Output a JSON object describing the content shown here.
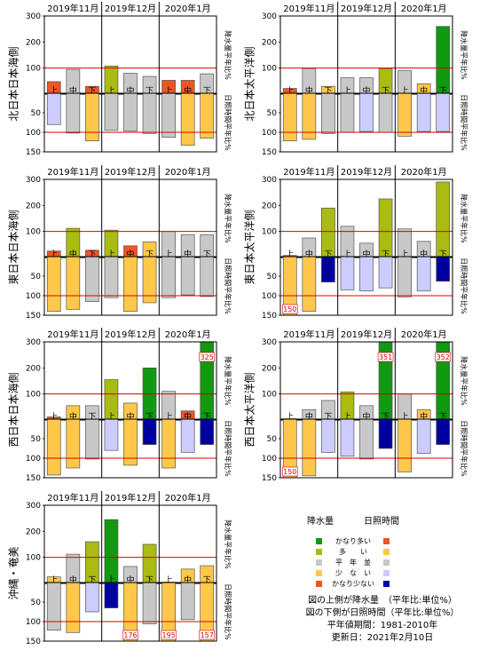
{
  "colors": {
    "much_above": "#119911",
    "above": "#aabb11",
    "normal": "#c8c8c8",
    "below_precip": "#ee5522",
    "below_sun": "#ffc84a",
    "much_below_precip": "#ee5522",
    "much_below_sun": "#ffc84a",
    "above_sun": "#ccccff",
    "much_above_sun": "#0000a0",
    "ref_line": "#dd0000"
  },
  "legend": {
    "precip_header": "降水量",
    "sun_header": "日照時間",
    "items": [
      {
        "label": "かなり多い",
        "precip_color": "#119911",
        "sun_color": "#ee5522"
      },
      {
        "label": "多　　い",
        "precip_color": "#aabb11",
        "sun_color": "#ffc84a"
      },
      {
        "label": "平　年　並",
        "precip_color": "#c8c8c8",
        "sun_color": "#c8c8c8"
      },
      {
        "label": "少　な　い",
        "precip_color": "#ffc84a",
        "sun_color": "#ccccff"
      },
      {
        "label": "かなり少ない",
        "precip_color": "#ee5522",
        "sun_color": "#0000a0"
      }
    ],
    "notes": [
      "図の上側が降水量　（平年比:単位%）",
      "図の下側が日照時間（平年比:単位%）",
      "平年値期間：1981-2010年",
      "更新日：2021年2月10日"
    ]
  },
  "chart_data": [
    {
      "type": "bar",
      "region": "北日本日本海側",
      "months": [
        "2019年11月",
        "2019年12月",
        "2020年1月"
      ],
      "categories": [
        "上",
        "中",
        "下",
        "上",
        "中",
        "下",
        "上",
        "中",
        "下"
      ],
      "precip": {
        "ylabel": "降水量平年比%",
        "ylim": [
          0,
          300
        ],
        "ticks": [
          100,
          200,
          300
        ],
        "values": [
          48,
          95,
          30,
          108,
          80,
          68,
          53,
          53,
          78
        ],
        "classes": [
          "below_precip",
          "normal",
          "below_precip",
          "above",
          "normal",
          "normal",
          "below_precip",
          "below_precip",
          "normal"
        ],
        "labels": [
          "",
          "",
          "",
          "",
          "",
          "",
          "",
          "",
          ""
        ]
      },
      "sun": {
        "ylabel": "日照時間平年比%",
        "ylim": [
          0,
          150
        ],
        "ticks": [
          50,
          100,
          150
        ],
        "values": [
          80,
          102,
          122,
          95,
          97,
          103,
          113,
          133,
          115
        ],
        "classes": [
          "above_sun",
          "normal",
          "below_sun",
          "normal",
          "normal",
          "normal",
          "normal",
          "below_sun",
          "below_sun"
        ],
        "labels": [
          "",
          "",
          "",
          "",
          "",
          "",
          "",
          "",
          ""
        ]
      }
    },
    {
      "type": "bar",
      "region": "北日本太平洋側",
      "months": [
        "2019年11月",
        "2019年12月",
        "2020年1月"
      ],
      "categories": [
        "上",
        "中",
        "下",
        "上",
        "中",
        "下",
        "上",
        "中",
        "下"
      ],
      "precip": {
        "ylabel": "降水量平年比%",
        "ylim": [
          0,
          300
        ],
        "ticks": [
          100,
          200,
          300
        ],
        "values": [
          22,
          98,
          30,
          63,
          63,
          98,
          90,
          40,
          260
        ],
        "classes": [
          "below_precip",
          "normal",
          "below_sun",
          "normal",
          "normal",
          "above",
          "normal",
          "below_sun",
          "much_above"
        ],
        "labels": [
          "",
          "",
          "",
          "",
          "",
          "",
          "",
          "",
          ""
        ]
      },
      "sun": {
        "ylabel": "日照時間平年比%",
        "ylim": [
          0,
          150
        ],
        "ticks": [
          50,
          100,
          150
        ],
        "values": [
          122,
          118,
          103,
          100,
          98,
          100,
          110,
          98,
          98
        ],
        "classes": [
          "below_sun",
          "below_sun",
          "normal",
          "normal",
          "above_sun",
          "normal",
          "below_sun",
          "above_sun",
          "above_sun"
        ],
        "labels": [
          "",
          "",
          "",
          "",
          "",
          "",
          "",
          "",
          ""
        ]
      }
    },
    {
      "type": "bar",
      "region": "東日本日本海側",
      "months": [
        "2019年11月",
        "2019年12月",
        "2020年1月"
      ],
      "categories": [
        "上",
        "中",
        "下",
        "上",
        "中",
        "下",
        "上",
        "中",
        "下"
      ],
      "precip": {
        "ylabel": "降水量平年比%",
        "ylim": [
          0,
          300
        ],
        "ticks": [
          100,
          200,
          300
        ],
        "values": [
          25,
          112,
          28,
          105,
          45,
          60,
          100,
          88,
          88
        ],
        "classes": [
          "below_precip",
          "above",
          "below_precip",
          "above",
          "below_precip",
          "below_sun",
          "normal",
          "normal",
          "normal"
        ],
        "labels": [
          "",
          "",
          "",
          "",
          "",
          "",
          "",
          "",
          ""
        ]
      },
      "sun": {
        "ylabel": "日照時間平年比%",
        "ylim": [
          0,
          150
        ],
        "ticks": [
          50,
          100,
          150
        ],
        "values": [
          140,
          135,
          115,
          105,
          140,
          118,
          105,
          98,
          102
        ],
        "classes": [
          "below_sun",
          "below_sun",
          "normal",
          "normal",
          "below_sun",
          "below_sun",
          "normal",
          "normal",
          "normal"
        ],
        "labels": [
          "",
          "",
          "",
          "",
          "",
          "",
          "",
          "",
          ""
        ]
      }
    },
    {
      "type": "bar",
      "region": "東日本太平洋側",
      "months": [
        "2019年11月",
        "2019年12月",
        "2020年1月"
      ],
      "categories": [
        "上",
        "中",
        "下",
        "上",
        "中",
        "下",
        "上",
        "中",
        "下"
      ],
      "precip": {
        "ylabel": "降水量平年比%",
        "ylim": [
          0,
          300
        ],
        "ticks": [
          100,
          200,
          300
        ],
        "values": [
          8,
          75,
          190,
          120,
          55,
          225,
          110,
          62,
          290
        ],
        "classes": [
          "much_below_precip",
          "normal",
          "above",
          "normal",
          "normal",
          "above",
          "normal",
          "normal",
          "above"
        ],
        "labels": [
          "",
          "",
          "",
          "",
          "",
          "",
          "",
          "",
          ""
        ]
      },
      "sun": {
        "ylabel": "日照時間平年比%",
        "ylim": [
          0,
          150
        ],
        "ticks": [
          50,
          100,
          150
        ],
        "values": [
          150,
          140,
          65,
          85,
          88,
          80,
          103,
          88,
          63
        ],
        "classes": [
          "much_below_sun",
          "much_below_sun",
          "much_above_sun",
          "above_sun",
          "above_sun",
          "above_sun",
          "normal",
          "above_sun",
          "much_above_sun"
        ],
        "labels": [
          "150",
          "",
          "",
          "",
          "",
          "",
          "",
          "",
          ""
        ]
      }
    },
    {
      "type": "bar",
      "region": "西日本日本海側",
      "months": [
        "2019年11月",
        "2019年12月",
        "2020年1月"
      ],
      "categories": [
        "上",
        "中",
        "下",
        "上",
        "中",
        "下",
        "上",
        "中",
        "下"
      ],
      "precip": {
        "ylabel": "降水量平年比%",
        "ylim": [
          0,
          300
        ],
        "ticks": [
          100,
          200,
          300
        ],
        "values": [
          12,
          55,
          55,
          155,
          65,
          200,
          110,
          35,
          325
        ],
        "classes": [
          "below_precip",
          "below_sun",
          "normal",
          "above",
          "below_sun",
          "much_above",
          "normal",
          "below_precip",
          "much_above"
        ],
        "labels": [
          "",
          "",
          "",
          "",
          "",
          "",
          "",
          "",
          "325"
        ]
      },
      "sun": {
        "ylabel": "日照時間平年比%",
        "ylim": [
          0,
          150
        ],
        "ticks": [
          50,
          100,
          150
        ],
        "values": [
          143,
          125,
          102,
          80,
          118,
          65,
          125,
          85,
          65
        ],
        "classes": [
          "much_below_sun",
          "below_sun",
          "normal",
          "above_sun",
          "below_sun",
          "much_above_sun",
          "below_sun",
          "above_sun",
          "much_above_sun"
        ],
        "labels": [
          "",
          "",
          "",
          "",
          "",
          "",
          "",
          "",
          ""
        ]
      }
    },
    {
      "type": "bar",
      "region": "西日本太平洋側",
      "months": [
        "2019年11月",
        "2019年12月",
        "2020年1月"
      ],
      "categories": [
        "上",
        "中",
        "下",
        "上",
        "中",
        "下",
        "上",
        "中",
        "下"
      ],
      "precip": {
        "ylabel": "降水量平年比%",
        "ylim": [
          0,
          300
        ],
        "ticks": [
          100,
          200,
          300
        ],
        "values": [
          5,
          40,
          75,
          108,
          55,
          351,
          100,
          40,
          352
        ],
        "classes": [
          "much_below_precip",
          "normal",
          "normal",
          "above",
          "normal",
          "much_above",
          "normal",
          "below_sun",
          "much_above"
        ],
        "labels": [
          "",
          "",
          "",
          "",
          "",
          "351",
          "",
          "",
          "352"
        ]
      },
      "sun": {
        "ylabel": "日照時間平年比%",
        "ylim": [
          0,
          150
        ],
        "ticks": [
          50,
          100,
          150
        ],
        "values": [
          150,
          145,
          85,
          95,
          102,
          75,
          135,
          88,
          65
        ],
        "classes": [
          "much_below_sun",
          "much_below_sun",
          "above_sun",
          "above_sun",
          "normal",
          "much_above_sun",
          "much_below_sun",
          "above_sun",
          "much_above_sun"
        ],
        "labels": [
          "150",
          "",
          "",
          "",
          "",
          "",
          "",
          "",
          ""
        ]
      }
    },
    {
      "type": "bar",
      "region": "沖縄・奄美",
      "months": [
        "2019年11月",
        "2019年12月",
        "2020年1月"
      ],
      "categories": [
        "上",
        "中",
        "下",
        "上",
        "中",
        "下",
        "上",
        "中",
        "下"
      ],
      "precip": {
        "ylabel": "降水量平年比%",
        "ylim": [
          0,
          300
        ],
        "ticks": [
          100,
          200,
          300
        ],
        "values": [
          25,
          112,
          160,
          245,
          65,
          150,
          5,
          55,
          68
        ],
        "classes": [
          "below_sun",
          "normal",
          "above",
          "much_above",
          "normal",
          "above",
          "much_below_precip",
          "below_sun",
          "below_sun"
        ],
        "labels": [
          "",
          "",
          "",
          "",
          "",
          "",
          "",
          "",
          ""
        ]
      },
      "sun": {
        "ylabel": "日照時間平年比%",
        "ylim": [
          0,
          150
        ],
        "ticks": [
          50,
          100,
          150
        ],
        "values": [
          122,
          128,
          75,
          65,
          176,
          106,
          195,
          95,
          157
        ],
        "classes": [
          "normal",
          "below_sun",
          "above_sun",
          "much_above_sun",
          "much_below_sun",
          "normal",
          "much_below_sun",
          "normal",
          "much_below_sun"
        ],
        "labels": [
          "",
          "",
          "",
          "",
          "176",
          "",
          "195",
          "",
          "157"
        ]
      }
    }
  ]
}
